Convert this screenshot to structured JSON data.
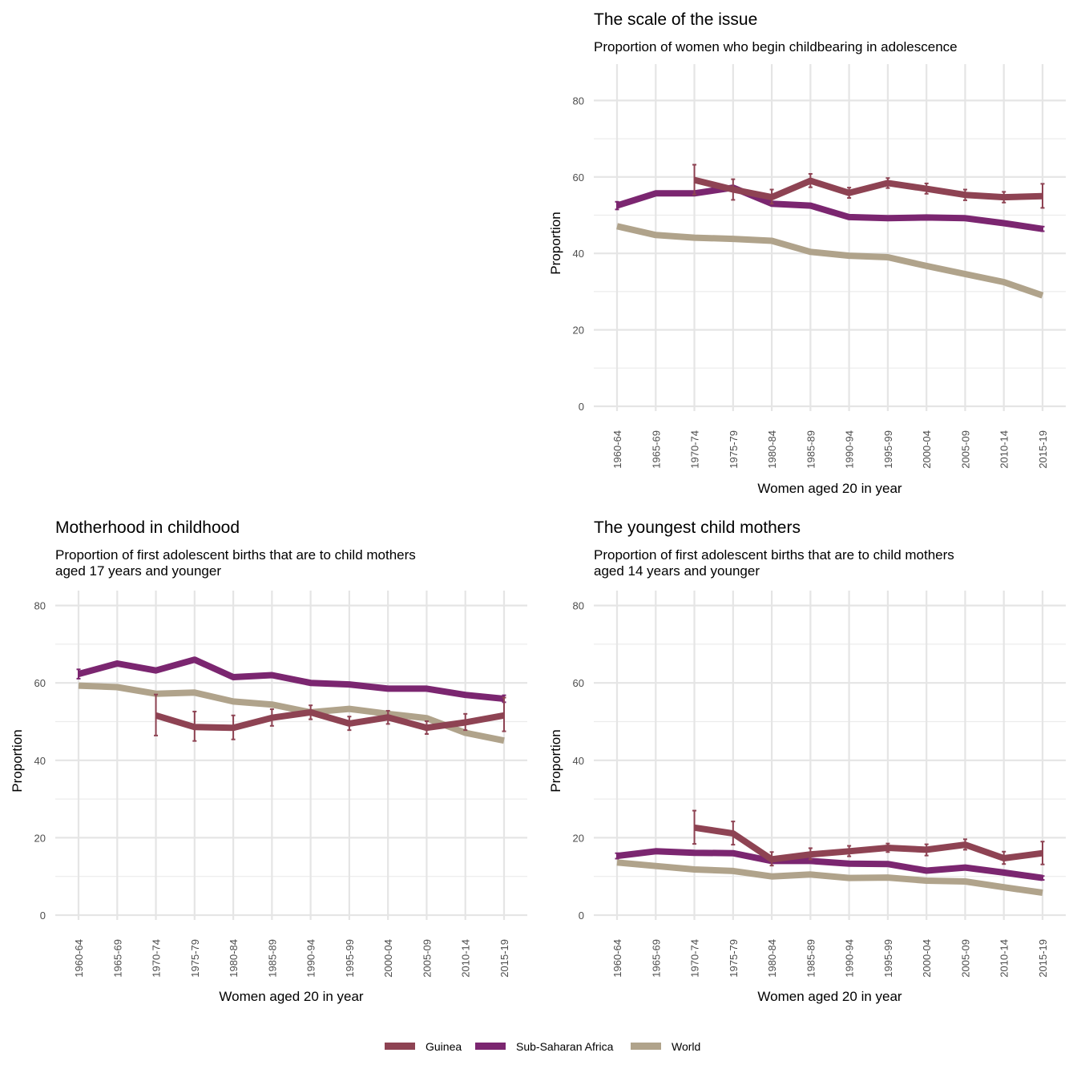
{
  "colors": {
    "Guinea": "#8e4353",
    "Sub-Saharan Africa": "#7b2670",
    "World": "#b0a38b"
  },
  "legend": {
    "position": "bottom",
    "items": [
      {
        "label": "Guinea",
        "color": "#8e4353"
      },
      {
        "label": "Sub-Saharan Africa",
        "color": "#7b2670"
      },
      {
        "label": "World",
        "color": "#b0a38b"
      }
    ]
  },
  "chart_data": [
    {
      "id": "scale",
      "type": "line",
      "title": "The scale of the issue",
      "subtitle": [
        "Proportion of women who begin childbearing in adolescence"
      ],
      "xlabel": "Women aged 20 in year",
      "ylabel": "Proportion",
      "ylim": [
        0,
        85
      ],
      "yticks": [
        0,
        20,
        40,
        60,
        80
      ],
      "grid": true,
      "categories": [
        "1960-64",
        "1965-69",
        "1970-74",
        "1975-79",
        "1980-84",
        "1985-89",
        "1990-94",
        "1995-99",
        "2000-04",
        "2005-09",
        "2010-14",
        "2015-19"
      ],
      "series": [
        {
          "name": "Guinea",
          "values": [
            null,
            null,
            59.2,
            56.7,
            54.7,
            59.0,
            55.8,
            58.4,
            56.9,
            55.3,
            54.7,
            55.0
          ],
          "err_low": [
            null,
            null,
            55.4,
            54.0,
            53.0,
            57.3,
            54.5,
            57.1,
            55.6,
            53.9,
            53.3,
            51.9
          ],
          "err_high": [
            null,
            null,
            63.2,
            59.4,
            56.7,
            60.8,
            57.2,
            59.7,
            58.3,
            56.7,
            56.1,
            58.2
          ]
        },
        {
          "name": "Sub-Saharan Africa",
          "values": [
            52.5,
            55.7,
            55.7,
            57.2,
            53.0,
            52.5,
            49.5,
            49.2,
            49.4,
            49.2,
            47.9,
            46.4
          ],
          "err_low": [
            51.5,
            null,
            null,
            null,
            null,
            null,
            null,
            null,
            null,
            null,
            null,
            45.8
          ],
          "err_high": [
            53.5,
            null,
            null,
            null,
            null,
            null,
            null,
            null,
            null,
            null,
            null,
            47.0
          ]
        },
        {
          "name": "World",
          "values": [
            47.1,
            44.8,
            44.1,
            43.8,
            43.3,
            40.4,
            39.4,
            39.0,
            36.7,
            34.6,
            32.5,
            29.0
          ]
        }
      ]
    },
    {
      "id": "motherhood",
      "type": "line",
      "title": "Motherhood in childhood",
      "subtitle": [
        "Proportion of first adolescent births that are to child mothers",
        "aged 17 years and younger"
      ],
      "xlabel": "Women aged 20 in year",
      "ylabel": "Proportion",
      "ylim": [
        0,
        85
      ],
      "yticks": [
        0,
        20,
        40,
        60,
        80
      ],
      "grid": true,
      "categories": [
        "1960-64",
        "1965-69",
        "1970-74",
        "1975-79",
        "1980-84",
        "1985-89",
        "1990-94",
        "1995-99",
        "2000-04",
        "2005-09",
        "2010-14",
        "2015-19"
      ],
      "series": [
        {
          "name": "Guinea",
          "values": [
            null,
            null,
            51.6,
            48.6,
            48.4,
            51.0,
            52.4,
            49.5,
            51.1,
            48.4,
            49.8,
            51.6
          ],
          "err_low": [
            null,
            null,
            46.4,
            45.0,
            45.4,
            48.9,
            50.6,
            47.8,
            49.4,
            46.8,
            47.8,
            47.5
          ],
          "err_high": [
            null,
            null,
            57.0,
            52.6,
            51.6,
            53.2,
            54.2,
            51.3,
            52.8,
            50.1,
            52.0,
            56.2
          ]
        },
        {
          "name": "Sub-Saharan Africa",
          "values": [
            62.3,
            65.0,
            63.2,
            66.0,
            61.5,
            62.0,
            60.0,
            59.6,
            58.5,
            58.5,
            56.9,
            55.9
          ],
          "err_low": [
            61.1,
            null,
            null,
            null,
            null,
            null,
            null,
            null,
            null,
            null,
            null,
            55.0
          ],
          "err_high": [
            63.5,
            null,
            null,
            null,
            null,
            null,
            null,
            null,
            null,
            null,
            null,
            56.8
          ]
        },
        {
          "name": "World",
          "values": [
            59.3,
            58.9,
            57.2,
            57.5,
            55.2,
            54.4,
            52.4,
            53.3,
            52.0,
            50.9,
            47.1,
            45.1
          ]
        }
      ]
    },
    {
      "id": "youngest",
      "type": "line",
      "title": "The youngest child mothers",
      "subtitle": [
        "Proportion of first adolescent births that are to child mothers",
        "aged 14 years and younger"
      ],
      "xlabel": "Women aged 20 in year",
      "ylabel": "Proportion",
      "ylim": [
        0,
        85
      ],
      "yticks": [
        0,
        20,
        40,
        60,
        80
      ],
      "grid": true,
      "categories": [
        "1960-64",
        "1965-69",
        "1970-74",
        "1975-79",
        "1980-84",
        "1985-89",
        "1990-94",
        "1995-99",
        "2000-04",
        "2005-09",
        "2010-14",
        "2015-19"
      ],
      "series": [
        {
          "name": "Guinea",
          "values": [
            null,
            null,
            22.6,
            21.1,
            14.4,
            15.7,
            16.5,
            17.4,
            16.9,
            18.2,
            14.7,
            16.0
          ],
          "err_low": [
            null,
            null,
            18.4,
            18.2,
            12.8,
            14.4,
            15.2,
            16.3,
            15.4,
            16.9,
            13.2,
            13.1
          ],
          "err_high": [
            null,
            null,
            27.0,
            24.2,
            16.3,
            17.3,
            17.9,
            18.5,
            18.3,
            19.6,
            16.4,
            19.0
          ]
        },
        {
          "name": "Sub-Saharan Africa",
          "values": [
            15.3,
            16.5,
            16.1,
            16.0,
            14.0,
            14.0,
            13.3,
            13.2,
            11.5,
            12.3,
            11.0,
            9.6
          ],
          "err_low": [
            14.6,
            null,
            null,
            null,
            null,
            null,
            null,
            null,
            null,
            null,
            null,
            9.1
          ],
          "err_high": [
            16.0,
            null,
            null,
            null,
            null,
            null,
            null,
            null,
            null,
            null,
            null,
            10.1
          ]
        },
        {
          "name": "World",
          "values": [
            13.6,
            12.7,
            11.8,
            11.4,
            10.0,
            10.5,
            9.6,
            9.7,
            8.9,
            8.7,
            7.2,
            5.8
          ]
        }
      ]
    }
  ]
}
